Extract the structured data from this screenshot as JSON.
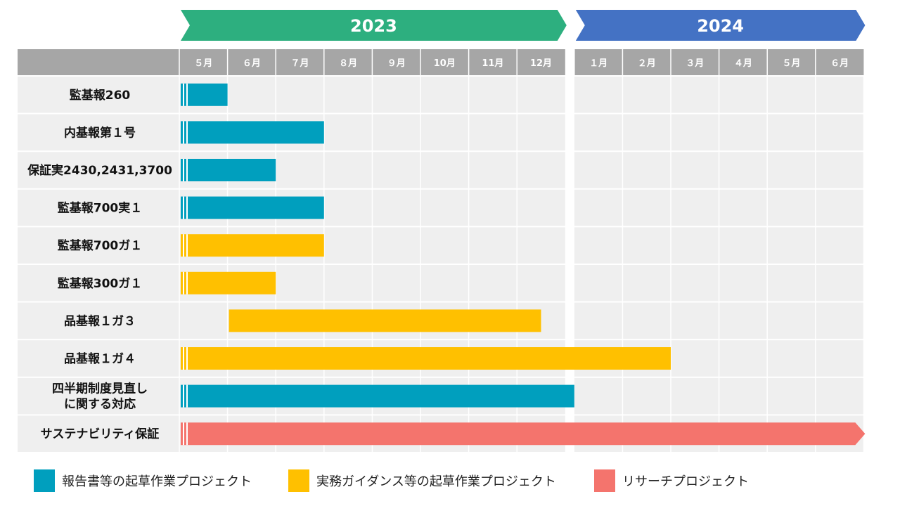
{
  "colors": {
    "year_2023": "#2daf7f",
    "year_2024": "#4472c4",
    "header_gray": "#a6a6a6",
    "row_bg": "#efefef",
    "blue": "#009fbe",
    "yellow": "#ffc000",
    "red": "#f4746d"
  },
  "chart_data": {
    "type": "gantt",
    "years": [
      {
        "label": "2023",
        "months": 8
      },
      {
        "label": "2024",
        "months": 6
      }
    ],
    "months": [
      "５月",
      "６月",
      "７月",
      "８月",
      "９月",
      "10月",
      "11月",
      "12月",
      "１月",
      "２月",
      "３月",
      "４月",
      "５月",
      "６月"
    ],
    "categories": [
      {
        "key": "blue",
        "label": "報告書等の起草作業プロジェクト"
      },
      {
        "key": "yellow",
        "label": "実務ガイダンス等の起草作業プロジェクト"
      },
      {
        "key": "red",
        "label": "リサーチプロジェクト"
      }
    ],
    "tasks": [
      {
        "name": [
          "監基報260"
        ],
        "category": "blue",
        "start_month": 0,
        "end_month": 1,
        "continued": true
      },
      {
        "name": [
          "内基報第１号"
        ],
        "category": "blue",
        "start_month": 0,
        "end_month": 3,
        "continued": true
      },
      {
        "name": [
          "保証実2430,2431,3700"
        ],
        "category": "blue",
        "start_month": 0,
        "end_month": 2,
        "continued": true
      },
      {
        "name": [
          "監基報700実１"
        ],
        "category": "blue",
        "start_month": 0,
        "end_month": 3,
        "continued": true
      },
      {
        "name": [
          "監基報700ガ１"
        ],
        "category": "yellow",
        "start_month": 0,
        "end_month": 3,
        "continued": true
      },
      {
        "name": [
          "監基報300ガ１"
        ],
        "category": "yellow",
        "start_month": 0,
        "end_month": 2,
        "continued": true
      },
      {
        "name": [
          "品基報１ガ３"
        ],
        "category": "yellow",
        "start_month": 1,
        "end_month": 7.5,
        "continued": false
      },
      {
        "name": [
          "品基報１ガ４"
        ],
        "category": "yellow",
        "start_month": 0,
        "end_month": 10,
        "continued": true
      },
      {
        "name": [
          "四半期制度見直し",
          "に関する対応"
        ],
        "category": "blue",
        "start_month": 0,
        "end_month": 8,
        "continued": true
      },
      {
        "name": [
          "サステナビリティ保証"
        ],
        "category": "red",
        "start_month": 0,
        "end_month": 14,
        "continued": true,
        "arrow": true
      }
    ]
  }
}
